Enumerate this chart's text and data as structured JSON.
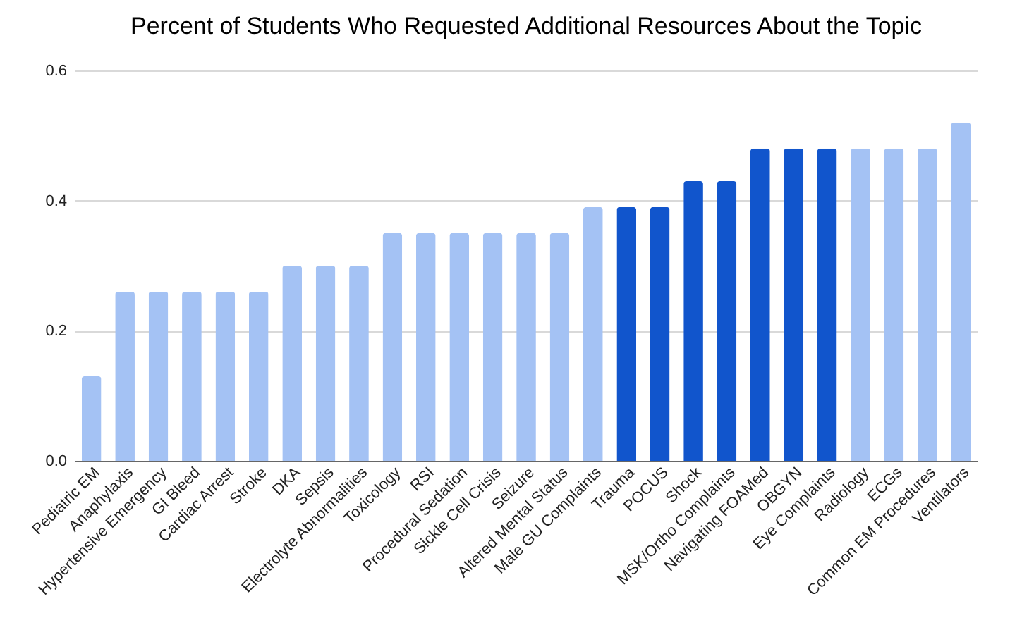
{
  "chart_data": {
    "type": "bar",
    "title": "Percent of Students Who Requested Additional Resources About the Topic",
    "categories": [
      "Pediatric EM",
      "Anaphylaxis",
      "Hypertensive Emergency",
      "GI Bleed",
      "Cardiac Arrest",
      "Stroke",
      "DKA",
      "Sepsis",
      "Electrolyte Abnormalities",
      "Toxicology",
      "RSI",
      "Procedural Sedation",
      "Sickle Cell Crisis",
      "Seizure",
      "Altered Mental Status",
      "Male GU Complaints",
      "Trauma",
      "POCUS",
      "Shock",
      "MSK/Ortho Complaints",
      "Navigating FOAMed",
      "OBGYN",
      "Eye Complaints",
      "Radiology",
      "ECGs",
      "Common EM Procedures",
      "Ventilators"
    ],
    "values": [
      0.13,
      0.26,
      0.26,
      0.26,
      0.26,
      0.26,
      0.3,
      0.3,
      0.3,
      0.35,
      0.35,
      0.35,
      0.35,
      0.35,
      0.35,
      0.39,
      0.39,
      0.39,
      0.43,
      0.43,
      0.48,
      0.48,
      0.48,
      0.48,
      0.48,
      0.48,
      0.52
    ],
    "colors": [
      "#a4c2f4",
      "#a4c2f4",
      "#a4c2f4",
      "#a4c2f4",
      "#a4c2f4",
      "#a4c2f4",
      "#a4c2f4",
      "#a4c2f4",
      "#a4c2f4",
      "#a4c2f4",
      "#a4c2f4",
      "#a4c2f4",
      "#a4c2f4",
      "#a4c2f4",
      "#a4c2f4",
      "#a4c2f4",
      "#1155cc",
      "#1155cc",
      "#1155cc",
      "#1155cc",
      "#1155cc",
      "#1155cc",
      "#1155cc",
      "#a4c2f4",
      "#a4c2f4",
      "#a4c2f4",
      "#a4c2f4"
    ],
    "ylim": [
      0,
      0.6
    ],
    "yticks": [
      {
        "value": 0,
        "label": "0.0"
      },
      0.2,
      0.4,
      0.6
    ],
    "grid": "y"
  }
}
